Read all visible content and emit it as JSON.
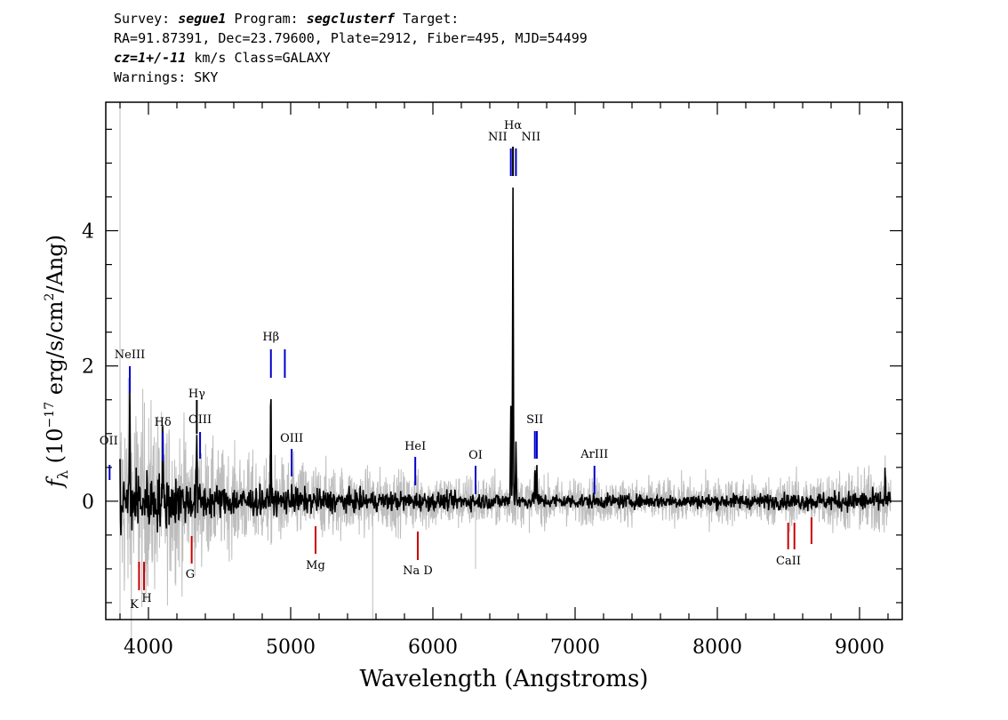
{
  "header": {
    "survey_label": "Survey:",
    "survey": "segue1",
    "program_label": "Program:",
    "program": "segclusterf",
    "target_label": "Target:",
    "line2": "RA=91.87391, Dec=23.79600, Plate=2912, Fiber=495, MJD=54499",
    "cz_value": "cz=1+/-11",
    "cz_rest": "km/s Class=GALAXY",
    "warnings": "Warnings: SKY"
  },
  "chart_data": {
    "type": "line",
    "xlabel": "Wavelength (Angstroms)",
    "ylabel": "f_λ (10^-17 erg/s/cm^2/Ang)",
    "xlim": [
      3700,
      9300
    ],
    "ylim": [
      -1.75,
      5.9
    ],
    "x_ticks": [
      4000,
      5000,
      6000,
      7000,
      8000,
      9000
    ],
    "y_ticks": [
      0,
      2,
      4
    ],
    "series": [
      {
        "color": "#000000",
        "continuum": [
          [
            3800,
            0.0
          ],
          [
            4500,
            0.0
          ],
          [
            5500,
            0.0
          ],
          [
            6500,
            0.0
          ],
          [
            7500,
            0.0
          ],
          [
            8500,
            0.0
          ],
          [
            9220,
            0.0
          ]
        ],
        "peaks": [
          {
            "x": 3869,
            "y": 1.5
          },
          {
            "x": 4101,
            "y": 0.8
          },
          {
            "x": 4340,
            "y": 1.05
          },
          {
            "x": 4861,
            "y": 1.75
          },
          {
            "x": 5007,
            "y": 0.25
          },
          {
            "x": 6548,
            "y": 1.5
          },
          {
            "x": 6563,
            "y": 4.75
          },
          {
            "x": 6584,
            "y": 0.95
          },
          {
            "x": 6717,
            "y": 0.55
          },
          {
            "x": 6731,
            "y": 0.5
          },
          {
            "x": 9180,
            "y": 0.4
          }
        ]
      },
      {
        "color": "#bbbbbb",
        "note_free": true,
        "noise_envelope": [
          [
            3800,
            1.6
          ],
          [
            4500,
            0.7
          ],
          [
            5500,
            0.45
          ],
          [
            6500,
            0.35
          ],
          [
            7500,
            0.3
          ],
          [
            8500,
            0.35
          ],
          [
            9220,
            0.5
          ]
        ]
      }
    ],
    "emission_lines": [
      {
        "label": "OII",
        "x": 3727,
        "color": "#0000cc"
      },
      {
        "label": "NeIII",
        "x": 3869,
        "color": "#0000cc"
      },
      {
        "label": "Hδ",
        "x": 4101,
        "color": "#0000cc"
      },
      {
        "label": "Hγ",
        "x": 4340,
        "color": "#000000"
      },
      {
        "label": "OIII",
        "x": 4363,
        "color": "#0000cc"
      },
      {
        "label": "Hβ",
        "x": 4861,
        "color": "#0000cc"
      },
      {
        "label": "",
        "x": 4959,
        "color": "#0000cc"
      },
      {
        "label": "OIII",
        "x": 5007,
        "color": "#0000cc"
      },
      {
        "label": "HeI",
        "x": 5876,
        "color": "#0000cc"
      },
      {
        "label": "OI",
        "x": 6300,
        "color": "#0000cc"
      },
      {
        "label": "NII",
        "x": 6548,
        "color": "#0000cc"
      },
      {
        "label": "Hα",
        "x": 6563,
        "color": "#000000"
      },
      {
        "label": "NII",
        "x": 6584,
        "color": "#0000cc"
      },
      {
        "label": "SII",
        "x": 6717,
        "color": "#0000cc"
      },
      {
        "label": "",
        "x": 6731,
        "color": "#0000cc"
      },
      {
        "label": "ArIII",
        "x": 7136,
        "color": "#0000cc"
      }
    ],
    "absorption_lines": [
      {
        "label": "K",
        "x": 3934,
        "color": "#cc0000"
      },
      {
        "label": "H",
        "x": 3969,
        "color": "#cc0000"
      },
      {
        "label": "G",
        "x": 4304,
        "color": "#cc0000"
      },
      {
        "label": "Mg",
        "x": 5175,
        "color": "#cc0000"
      },
      {
        "label": "Na D",
        "x": 5894,
        "color": "#cc0000"
      },
      {
        "label": "CaII",
        "x": 8498,
        "color": "#cc0000"
      },
      {
        "label": "",
        "x": 8542,
        "color": "#cc0000"
      },
      {
        "label": "",
        "x": 8662,
        "color": "#cc0000"
      }
    ]
  }
}
